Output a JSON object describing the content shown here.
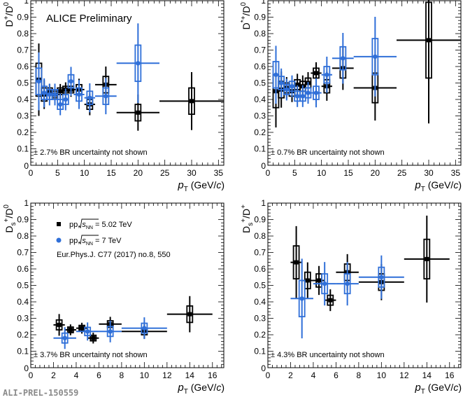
{
  "colors": {
    "pp_5_02": "#000000",
    "pp_7": "#2f6fd8"
  },
  "preliminary_tag": "ALI-PREL-150559",
  "chart_data": [
    {
      "type": "scatter",
      "panel": "D+/D0",
      "ylabel_main": "D",
      "ylabel_sup": "+",
      "ylabel_denom": "/D",
      "ylabel_denom_sup": "0",
      "xlabel_main": "p",
      "xlabel_sub": "T",
      "xlabel_unit_a": " (GeV/",
      "xlabel_unit_c": "c",
      "xlabel_unit_b": ")",
      "xlim": [
        0,
        36
      ],
      "ylim": [
        0,
        1
      ],
      "xticks": [
        0,
        5,
        10,
        15,
        20,
        25,
        30,
        35
      ],
      "yticks": [
        0.1,
        0.2,
        0.3,
        0.4,
        0.5,
        0.6,
        0.7,
        0.8,
        0.9,
        1
      ],
      "title": "ALICE Preliminary",
      "note": "± 2.7% BR uncertainty not shown",
      "series": [
        {
          "key": "pp_5_02",
          "points": [
            {
              "x": 1.5,
              "y": 0.52,
              "xerr": 0.5,
              "yerr": 0.1
            },
            {
              "x": 2.5,
              "y": 0.43,
              "xerr": 0.5,
              "yerr": 0.04
            },
            {
              "x": 3.5,
              "y": 0.45,
              "xerr": 0.5,
              "yerr": 0.02
            },
            {
              "x": 4.5,
              "y": 0.43,
              "xerr": 0.5,
              "yerr": 0.02
            },
            {
              "x": 5.5,
              "y": 0.45,
              "xerr": 0.5,
              "yerr": 0.02
            },
            {
              "x": 6.5,
              "y": 0.46,
              "xerr": 0.5,
              "yerr": 0.02
            },
            {
              "x": 7.5,
              "y": 0.46,
              "xerr": 0.5,
              "yerr": 0.02
            },
            {
              "x": 9,
              "y": 0.46,
              "xerr": 1,
              "yerr": 0.03
            },
            {
              "x": 11,
              "y": 0.37,
              "xerr": 1,
              "yerr": 0.03
            },
            {
              "x": 14,
              "y": 0.49,
              "xerr": 2,
              "yerr": 0.05
            },
            {
              "x": 20,
              "y": 0.32,
              "xerr": 4,
              "yerr": 0.05
            },
            {
              "x": 30,
              "y": 0.39,
              "xerr": 6,
              "yerr": 0.08
            }
          ]
        },
        {
          "key": "pp_7",
          "points": [
            {
              "x": 1.5,
              "y": 0.51,
              "xerr": 0.5,
              "yerr": 0.08
            },
            {
              "x": 2.5,
              "y": 0.44,
              "xerr": 0.5,
              "yerr": 0.04
            },
            {
              "x": 3.5,
              "y": 0.43,
              "xerr": 0.5,
              "yerr": 0.03
            },
            {
              "x": 4.5,
              "y": 0.43,
              "xerr": 0.5,
              "yerr": 0.03
            },
            {
              "x": 5.5,
              "y": 0.37,
              "xerr": 0.5,
              "yerr": 0.03
            },
            {
              "x": 6.5,
              "y": 0.4,
              "xerr": 0.5,
              "yerr": 0.03
            },
            {
              "x": 7.5,
              "y": 0.51,
              "xerr": 0.5,
              "yerr": 0.04
            },
            {
              "x": 9,
              "y": 0.43,
              "xerr": 1,
              "yerr": 0.04
            },
            {
              "x": 11,
              "y": 0.41,
              "xerr": 1,
              "yerr": 0.04
            },
            {
              "x": 14,
              "y": 0.42,
              "xerr": 2,
              "yerr": 0.05
            },
            {
              "x": 20,
              "y": 0.62,
              "xerr": 4,
              "yerr": 0.11
            }
          ]
        }
      ]
    },
    {
      "type": "scatter",
      "panel": "D*+/D0",
      "ylabel_main": "D",
      "ylabel_sup": "*+",
      "ylabel_denom": "/D",
      "ylabel_denom_sup": "0",
      "xlabel_main": "p",
      "xlabel_sub": "T",
      "xlabel_unit_a": " (GeV/",
      "xlabel_unit_c": "c",
      "xlabel_unit_b": ")",
      "xlim": [
        0,
        36
      ],
      "ylim": [
        0,
        1
      ],
      "xticks": [
        0,
        5,
        10,
        15,
        20,
        25,
        30,
        35
      ],
      "yticks": [
        0.1,
        0.2,
        0.3,
        0.4,
        0.5,
        0.6,
        0.7,
        0.8,
        0.9,
        1
      ],
      "note": "± 0.7% BR uncertainty not shown",
      "series": [
        {
          "key": "pp_5_02",
          "points": [
            {
              "x": 1.5,
              "y": 0.45,
              "xerr": 0.5,
              "yerr": 0.1
            },
            {
              "x": 2.5,
              "y": 0.46,
              "xerr": 0.5,
              "yerr": 0.05
            },
            {
              "x": 3.5,
              "y": 0.47,
              "xerr": 0.5,
              "yerr": 0.03
            },
            {
              "x": 4.5,
              "y": 0.45,
              "xerr": 0.5,
              "yerr": 0.03
            },
            {
              "x": 5.5,
              "y": 0.49,
              "xerr": 0.5,
              "yerr": 0.03
            },
            {
              "x": 6.5,
              "y": 0.48,
              "xerr": 0.5,
              "yerr": 0.03
            },
            {
              "x": 7.5,
              "y": 0.5,
              "xerr": 0.5,
              "yerr": 0.03
            },
            {
              "x": 9,
              "y": 0.56,
              "xerr": 1,
              "yerr": 0.03
            },
            {
              "x": 11,
              "y": 0.48,
              "xerr": 1,
              "yerr": 0.04
            },
            {
              "x": 14,
              "y": 0.59,
              "xerr": 2,
              "yerr": 0.06
            },
            {
              "x": 20,
              "y": 0.47,
              "xerr": 4,
              "yerr": 0.09
            },
            {
              "x": 30,
              "y": 0.76,
              "xerr": 6,
              "yerr": 0.23
            }
          ]
        },
        {
          "key": "pp_7",
          "points": [
            {
              "x": 1.5,
              "y": 0.55,
              "xerr": 0.5,
              "yerr": 0.08
            },
            {
              "x": 2.5,
              "y": 0.5,
              "xerr": 0.5,
              "yerr": 0.04
            },
            {
              "x": 3.5,
              "y": 0.46,
              "xerr": 0.5,
              "yerr": 0.03
            },
            {
              "x": 4.5,
              "y": 0.48,
              "xerr": 0.5,
              "yerr": 0.03
            },
            {
              "x": 5.5,
              "y": 0.42,
              "xerr": 0.5,
              "yerr": 0.03
            },
            {
              "x": 6.5,
              "y": 0.42,
              "xerr": 0.5,
              "yerr": 0.03
            },
            {
              "x": 7.5,
              "y": 0.44,
              "xerr": 0.5,
              "yerr": 0.03
            },
            {
              "x": 9,
              "y": 0.44,
              "xerr": 1,
              "yerr": 0.04
            },
            {
              "x": 11,
              "y": 0.55,
              "xerr": 1,
              "yerr": 0.05
            },
            {
              "x": 14,
              "y": 0.65,
              "xerr": 2,
              "yerr": 0.07
            },
            {
              "x": 20,
              "y": 0.66,
              "xerr": 4,
              "yerr": 0.11
            }
          ]
        }
      ]
    },
    {
      "type": "scatter",
      "panel": "Ds+/D0",
      "ylabel_main": "D",
      "ylabel_sub": "s",
      "ylabel_sup": "+",
      "ylabel_denom": "/D",
      "ylabel_denom_sup": "0",
      "xlabel_main": "p",
      "xlabel_sub": "T",
      "xlabel_unit_a": " (GeV/",
      "xlabel_unit_c": "c",
      "xlabel_unit_b": ")",
      "xlim": [
        0,
        17
      ],
      "ylim": [
        0,
        1
      ],
      "xticks": [
        0,
        2,
        4,
        6,
        8,
        10,
        12,
        14,
        16
      ],
      "yticks": [
        0.1,
        0.2,
        0.3,
        0.4,
        0.5,
        0.6,
        0.7,
        0.8,
        0.9,
        1
      ],
      "legend": [
        {
          "key": "pp_5_02",
          "pre": "pp, ",
          "sqrt": "s",
          "sub": "NN",
          "post": " = 5.02 TeV"
        },
        {
          "key": "pp_7",
          "pre": "pp, ",
          "sqrt": "s",
          "sub": "NN",
          "post": " = 7 TeV"
        }
      ],
      "reference": "Eur.Phys.J. C77 (2017) no.8, 550",
      "note": "± 3.7% BR uncertainty not shown",
      "series": [
        {
          "key": "pp_5_02",
          "points": [
            {
              "x": 2.5,
              "y": 0.26,
              "xerr": 0.5,
              "yerr": 0.03
            },
            {
              "x": 3.5,
              "y": 0.23,
              "xerr": 0.5,
              "yerr": 0.015
            },
            {
              "x": 4.5,
              "y": 0.24,
              "xerr": 0.5,
              "yerr": 0.015
            },
            {
              "x": 5.5,
              "y": 0.18,
              "xerr": 0.5,
              "yerr": 0.015
            },
            {
              "x": 7,
              "y": 0.265,
              "xerr": 1,
              "yerr": 0.02
            },
            {
              "x": 10,
              "y": 0.22,
              "xerr": 2,
              "yerr": 0.02
            },
            {
              "x": 14,
              "y": 0.325,
              "xerr": 2,
              "yerr": 0.05
            }
          ]
        },
        {
          "key": "pp_7",
          "points": [
            {
              "x": 3,
              "y": 0.18,
              "xerr": 1,
              "yerr": 0.03
            },
            {
              "x": 5,
              "y": 0.22,
              "xerr": 1,
              "yerr": 0.025
            },
            {
              "x": 7,
              "y": 0.22,
              "xerr": 1,
              "yerr": 0.03
            },
            {
              "x": 10,
              "y": 0.24,
              "xerr": 2,
              "yerr": 0.03
            }
          ]
        }
      ]
    },
    {
      "type": "scatter",
      "panel": "Ds+/D+",
      "ylabel_main": "D",
      "ylabel_sub": "s",
      "ylabel_sup": "+",
      "ylabel_denom": "/D",
      "ylabel_denom_sup": "+",
      "xlabel_main": "p",
      "xlabel_sub": "T",
      "xlabel_unit_a": " (GeV/",
      "xlabel_unit_c": "c",
      "xlabel_unit_b": ")",
      "xlim": [
        0,
        17
      ],
      "ylim": [
        0,
        1
      ],
      "xticks": [
        0,
        2,
        4,
        6,
        8,
        10,
        12,
        14,
        16
      ],
      "yticks": [
        0.1,
        0.2,
        0.3,
        0.4,
        0.5,
        0.6,
        0.7,
        0.8,
        0.9,
        1
      ],
      "note": "± 4.3% BR uncertainty not shown",
      "series": [
        {
          "key": "pp_5_02",
          "points": [
            {
              "x": 2.5,
              "y": 0.64,
              "xerr": 0.5,
              "yerr": 0.1
            },
            {
              "x": 3.5,
              "y": 0.53,
              "xerr": 0.5,
              "yerr": 0.05
            },
            {
              "x": 4.5,
              "y": 0.53,
              "xerr": 0.5,
              "yerr": 0.04
            },
            {
              "x": 5.5,
              "y": 0.41,
              "xerr": 0.5,
              "yerr": 0.03
            },
            {
              "x": 7,
              "y": 0.58,
              "xerr": 1,
              "yerr": 0.05
            },
            {
              "x": 10,
              "y": 0.52,
              "xerr": 2,
              "yerr": 0.05
            },
            {
              "x": 14,
              "y": 0.66,
              "xerr": 2,
              "yerr": 0.12
            }
          ]
        },
        {
          "key": "pp_7",
          "points": [
            {
              "x": 3,
              "y": 0.42,
              "xerr": 1,
              "yerr": 0.11
            },
            {
              "x": 5,
              "y": 0.51,
              "xerr": 1,
              "yerr": 0.06
            },
            {
              "x": 7,
              "y": 0.51,
              "xerr": 1,
              "yerr": 0.06
            },
            {
              "x": 10,
              "y": 0.55,
              "xerr": 2,
              "yerr": 0.06
            }
          ]
        }
      ]
    }
  ]
}
